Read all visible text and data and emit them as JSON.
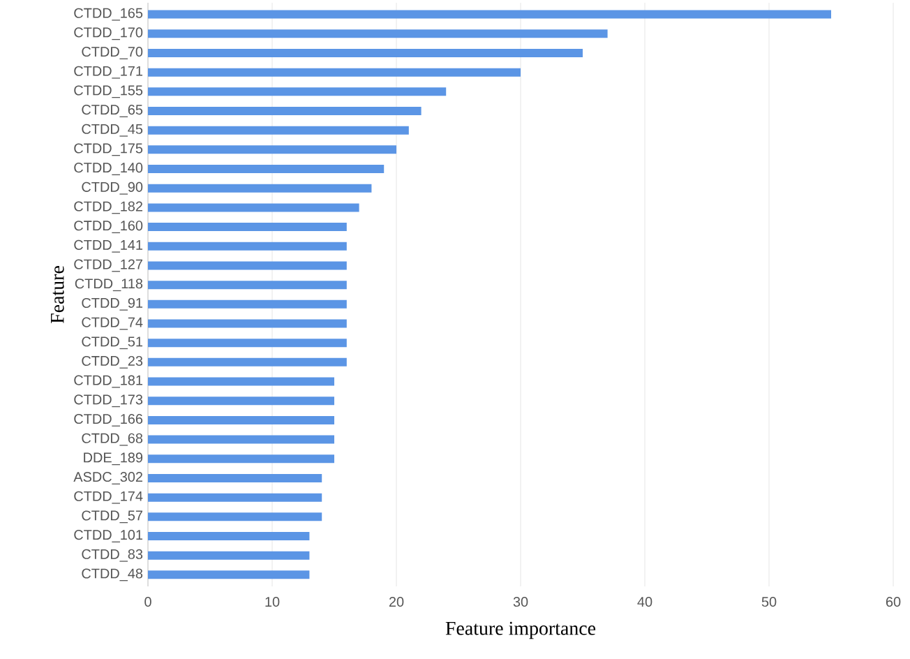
{
  "chart_data": {
    "type": "bar",
    "orientation": "horizontal",
    "xlabel": "Feature importance",
    "ylabel": "Feature",
    "categories": [
      "CTDD_165",
      "CTDD_170",
      "CTDD_70",
      "CTDD_171",
      "CTDD_155",
      "CTDD_65",
      "CTDD_45",
      "CTDD_175",
      "CTDD_140",
      "CTDD_90",
      "CTDD_182",
      "CTDD_160",
      "CTDD_141",
      "CTDD_127",
      "CTDD_118",
      "CTDD_91",
      "CTDD_74",
      "CTDD_51",
      "CTDD_23",
      "CTDD_181",
      "CTDD_173",
      "CTDD_166",
      "CTDD_68",
      "DDE_189",
      "ASDC_302",
      "CTDD_174",
      "CTDD_57",
      "CTDD_101",
      "CTDD_83",
      "CTDD_48"
    ],
    "values": [
      55,
      37,
      35,
      30,
      24,
      22,
      21,
      20,
      19,
      18,
      17,
      16,
      16,
      16,
      16,
      16,
      16,
      16,
      16,
      15,
      15,
      15,
      15,
      15,
      14,
      14,
      14,
      13,
      13,
      13
    ],
    "color": "#5b95e5",
    "xlim": [
      0,
      60
    ],
    "xticks": [
      0,
      10,
      20,
      30,
      40,
      50,
      60
    ],
    "grid": "x"
  }
}
